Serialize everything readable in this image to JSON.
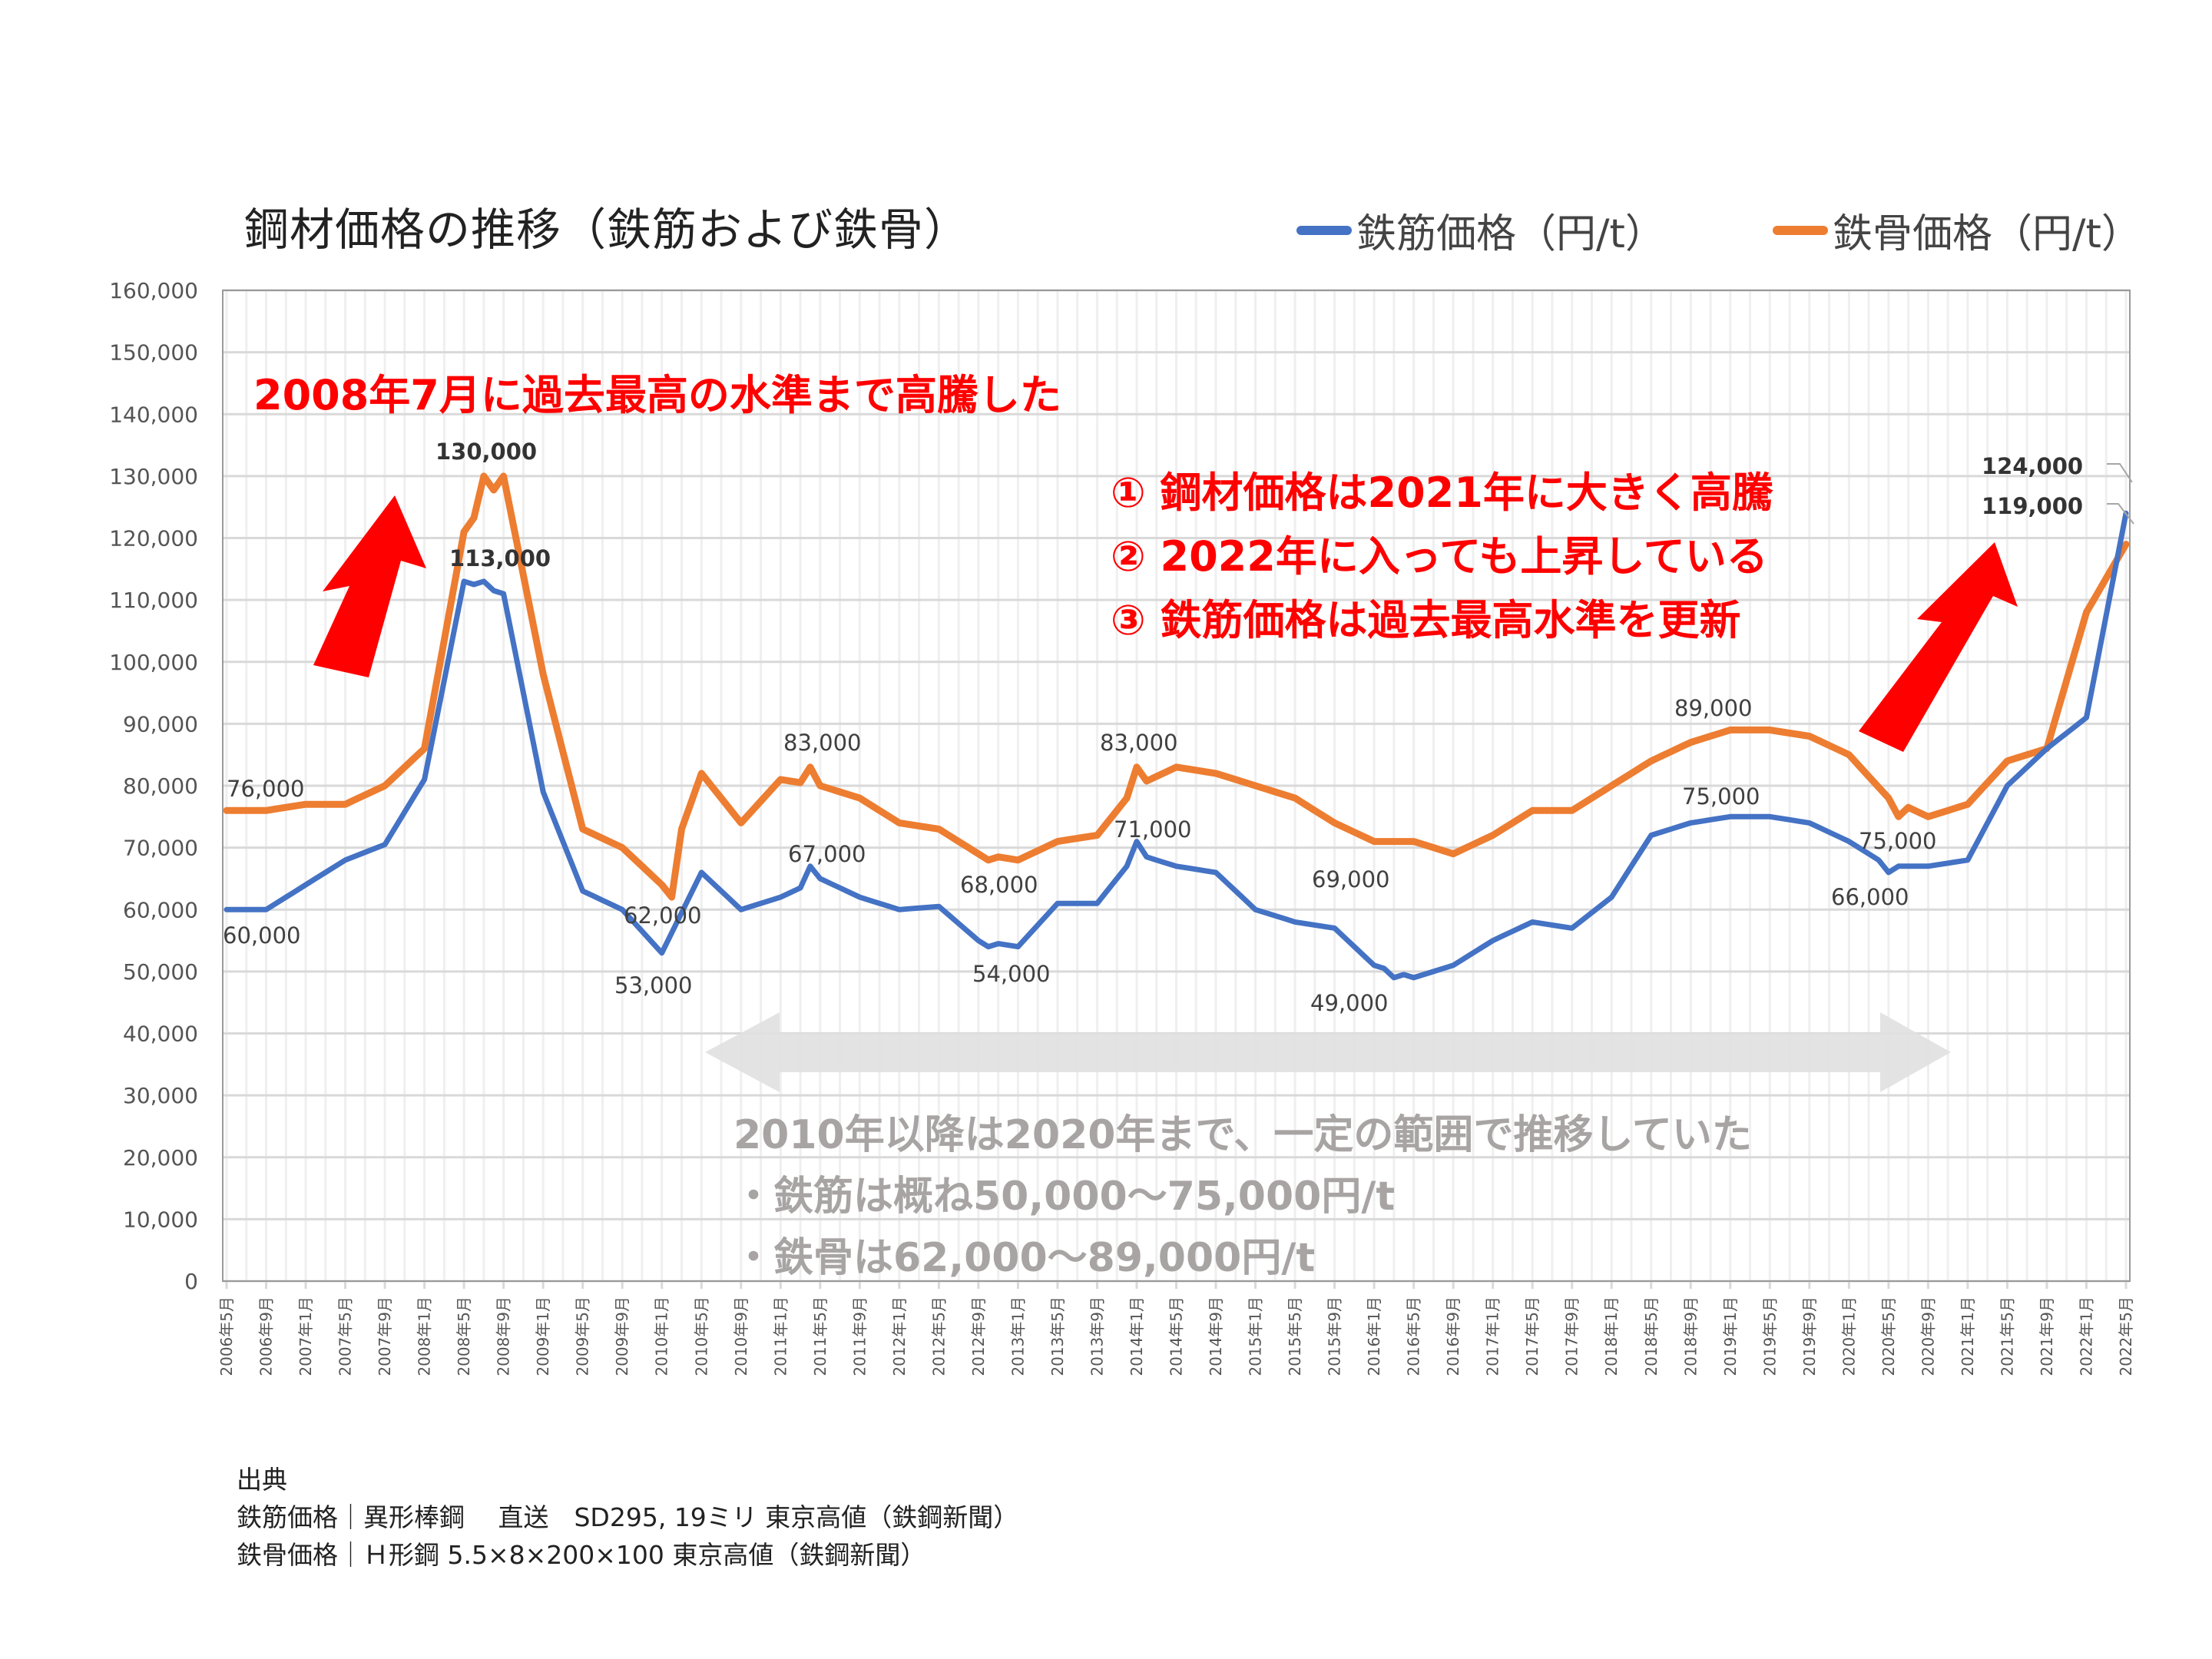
{
  "title": "鋼材価格の推移（鉄筋および鉄骨）",
  "legend": [
    {
      "label": "鉄筋価格（円/t）",
      "color": "#4472C4"
    },
    {
      "label": "鉄骨価格（円/t）",
      "color": "#ED7D31"
    }
  ],
  "annotations": {
    "peak_2008": "2008年7月に過去最高の水準まで高騰した",
    "points": [
      "① 鋼材価格は2021年に大きく高騰",
      "② 2022年に入っても上昇している",
      "③ 鉄筋価格は過去最高水準を更新"
    ],
    "range_heading": "2010年以降は2020年まで、一定の範囲で推移していた",
    "range_rebar": "・鉄筋は概ね50,000～75,000円/t",
    "range_steel": "・鉄骨は62,000～89,000円/t"
  },
  "source": {
    "heading": "出典",
    "line1": "鉄筋価格｜異形棒鋼　 直送　SD295, 19ミリ 東京高値（鉄鋼新聞）",
    "line2": "鉄骨価格｜Ｈ形鋼 5.5×8×200×100 東京高値（鉄鋼新聞）"
  },
  "chart_data": {
    "type": "line",
    "title": "鋼材価格の推移（鉄筋および鉄骨）",
    "xlabel": "",
    "ylabel": "",
    "ylim": [
      0,
      160000
    ],
    "yticks": [
      "0",
      "10,000",
      "20,000",
      "30,000",
      "40,000",
      "50,000",
      "60,000",
      "70,000",
      "80,000",
      "90,000",
      "100,000",
      "110,000",
      "120,000",
      "130,000",
      "140,000",
      "150,000",
      "160,000"
    ],
    "x_start": "2006年5月",
    "x_end": "2022年5月",
    "x_tick_labels": [
      "2006年5月",
      "2006年9月",
      "2007年1月",
      "2007年5月",
      "2007年9月",
      "2008年1月",
      "2008年5月",
      "2008年9月",
      "2009年1月",
      "2009年5月",
      "2009年9月",
      "2010年1月",
      "2010年5月",
      "2010年9月",
      "2011年1月",
      "2011年5月",
      "2011年9月",
      "2012年1月",
      "2012年5月",
      "2012年9月",
      "2013年1月",
      "2013年5月",
      "2013年9月",
      "2014年1月",
      "2014年5月",
      "2014年9月",
      "2015年1月",
      "2015年5月",
      "2015年9月",
      "2016年1月",
      "2016年5月",
      "2016年9月",
      "2017年1月",
      "2017年5月",
      "2017年9月",
      "2018年1月",
      "2018年5月",
      "2018年9月",
      "2019年1月",
      "2019年5月",
      "2019年9月",
      "2020年1月",
      "2020年5月",
      "2020年9月",
      "2021年1月",
      "2021年5月",
      "2021年9月",
      "2022年1月",
      "2022年5月"
    ],
    "grid": true,
    "legend_position": "top-right",
    "series": [
      {
        "name": "鉄筋価格（円/t）",
        "color": "#4472C4",
        "values_every_4_months": [
          60000,
          60000,
          64000,
          68000,
          70500,
          81000,
          113000,
          111000,
          79000,
          63000,
          60000,
          53000,
          66000,
          60000,
          62000,
          65000,
          62000,
          60000,
          60500,
          55000,
          54000,
          61000,
          61000,
          69000,
          67000,
          66000,
          60000,
          58000,
          57000,
          51000,
          49000,
          51000,
          55000,
          58000,
          57000,
          62000,
          72000,
          74000,
          75000,
          75000,
          74000,
          71000,
          67000,
          67000,
          68000,
          80000,
          86000,
          91000,
          124000
        ],
        "data_labels": [
          {
            "x": "2006年5月",
            "value": 60000
          },
          {
            "x": "2008年7月",
            "value": 113000
          },
          {
            "x": "2010年1月",
            "value": 53000
          },
          {
            "x": "2011年4月",
            "value": 67000
          },
          {
            "x": "2012年10月",
            "value": 54000
          },
          {
            "x": "2014年1月",
            "value": 71000
          },
          {
            "x": "2016年3月",
            "value": 49000
          },
          {
            "x": "2019年1月",
            "value": 75000
          },
          {
            "x": "2020年5月",
            "value": 66000
          },
          {
            "x": "2022年5月",
            "value": 124000
          }
        ]
      },
      {
        "name": "鉄骨価格（円/t）",
        "color": "#ED7D31",
        "values_every_4_months": [
          76000,
          76000,
          77000,
          77000,
          80000,
          86000,
          121000,
          130000,
          98000,
          73000,
          70000,
          64000,
          82000,
          74000,
          81000,
          80000,
          78000,
          74000,
          73000,
          69000,
          68000,
          71000,
          72000,
          80000,
          83000,
          82000,
          80000,
          78000,
          74000,
          71000,
          71000,
          69000,
          72000,
          76000,
          76000,
          80000,
          84000,
          87000,
          89000,
          89000,
          88000,
          85000,
          78000,
          75000,
          77000,
          84000,
          86000,
          108000,
          119000
        ],
        "data_labels": [
          {
            "x": "2006年5月",
            "value": 76000
          },
          {
            "x": "2008年7月",
            "value": 130000
          },
          {
            "x": "2010年2月",
            "value": 62000
          },
          {
            "x": "2011年4月",
            "value": 83000
          },
          {
            "x": "2012年10月",
            "value": 68000
          },
          {
            "x": "2014年1月",
            "value": 83000
          },
          {
            "x": "2016年9月",
            "value": 69000
          },
          {
            "x": "2019年1月",
            "value": 89000
          },
          {
            "x": "2020年6月",
            "value": 75000
          },
          {
            "x": "2022年5月",
            "value": 119000
          }
        ]
      }
    ]
  }
}
